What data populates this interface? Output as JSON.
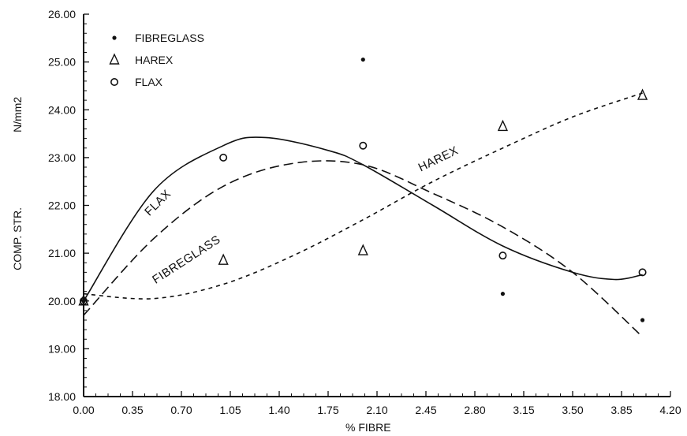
{
  "chart_data": {
    "type": "scatter",
    "xlabel": "% FIBRE",
    "ylabel": "COMP. STR.",
    "ylabel_units": "N/mm2",
    "xlim": [
      0,
      4.2
    ],
    "ylim": [
      18,
      26
    ],
    "x_ticks": [
      "0.00",
      "0.35",
      "0.70",
      "1.05",
      "1.40",
      "1.75",
      "2.10",
      "2.45",
      "2.80",
      "3.15",
      "3.50",
      "3.85",
      "4.20"
    ],
    "y_ticks": [
      "18.00",
      "19.00",
      "20.00",
      "21.00",
      "22.00",
      "23.00",
      "24.00",
      "25.00",
      "26.00"
    ],
    "grid": false,
    "legend_position": "top-left",
    "series": [
      {
        "name": "FIBREGLASS",
        "marker": "dot",
        "line_style": "long-dash",
        "points": [
          [
            0,
            20.0
          ],
          [
            2.0,
            25.05
          ],
          [
            3.0,
            20.15
          ],
          [
            4.0,
            19.6
          ]
        ],
        "fit_curve": [
          [
            0,
            19.7
          ],
          [
            0.5,
            21.3
          ],
          [
            1.0,
            22.4
          ],
          [
            1.5,
            22.88
          ],
          [
            2.0,
            22.85
          ],
          [
            2.5,
            22.25
          ],
          [
            3.0,
            21.55
          ],
          [
            3.5,
            20.6
          ],
          [
            4.0,
            19.25
          ]
        ],
        "curve_label": "FIBREGLASS"
      },
      {
        "name": "HAREX",
        "marker": "triangle",
        "line_style": "short-dash",
        "points": [
          [
            0,
            20.0
          ],
          [
            1.0,
            20.85
          ],
          [
            2.0,
            21.05
          ],
          [
            3.0,
            23.65
          ],
          [
            4.0,
            24.3
          ]
        ],
        "fit_curve": [
          [
            0,
            20.15
          ],
          [
            0.5,
            20.05
          ],
          [
            1.0,
            20.35
          ],
          [
            1.5,
            20.95
          ],
          [
            2.0,
            21.7
          ],
          [
            2.5,
            22.5
          ],
          [
            3.0,
            23.2
          ],
          [
            3.5,
            23.85
          ],
          [
            4.0,
            24.35
          ]
        ],
        "curve_label": "HAREX"
      },
      {
        "name": "FLAX",
        "marker": "circle",
        "line_style": "solid",
        "points": [
          [
            0,
            20.0
          ],
          [
            1.0,
            23.0
          ],
          [
            2.0,
            23.25
          ],
          [
            3.0,
            20.95
          ],
          [
            4.0,
            20.6
          ]
        ],
        "fit_curve": [
          [
            0,
            20.0
          ],
          [
            0.5,
            22.3
          ],
          [
            1.0,
            23.25
          ],
          [
            1.3,
            23.42
          ],
          [
            1.75,
            23.15
          ],
          [
            2.0,
            22.85
          ],
          [
            2.5,
            22.0
          ],
          [
            3.0,
            21.15
          ],
          [
            3.5,
            20.6
          ],
          [
            3.8,
            20.45
          ],
          [
            4.0,
            20.55
          ]
        ],
        "curve_label": "FLAX"
      }
    ]
  }
}
